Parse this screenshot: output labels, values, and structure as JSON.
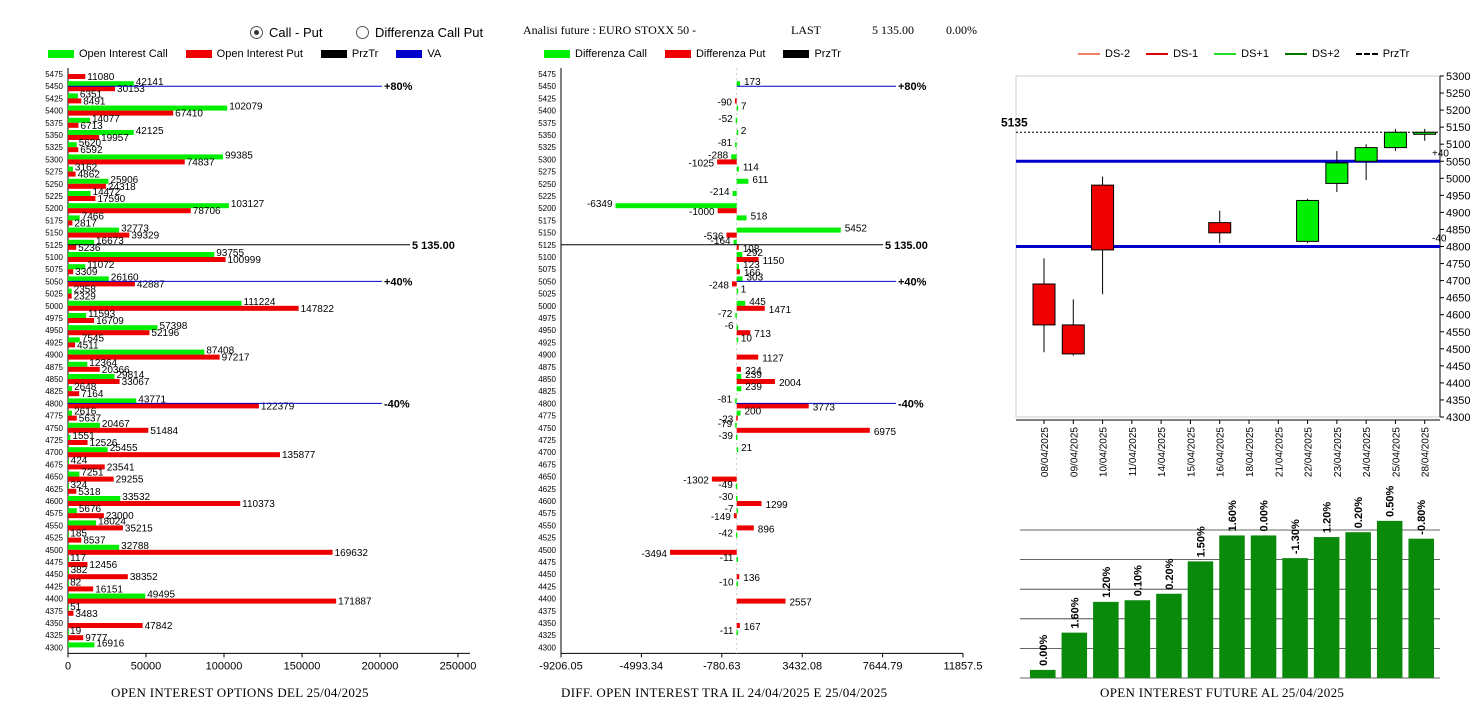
{
  "controls": {
    "radio_call_put": "Call - Put",
    "radio_diff": "Differenza Call Put",
    "selected": "call_put"
  },
  "header": {
    "title": "Analisi future : EURO STOXX 50 -",
    "last_label": "LAST",
    "last_value": "5 135.00",
    "change": "0.00%"
  },
  "colors": {
    "call": "#00ee00",
    "put": "#ee0000",
    "przTr": "#000000",
    "va": "#0000cc"
  },
  "chart_data": [
    {
      "id": "oi",
      "type": "bar",
      "orientation": "horizontal",
      "caption": "OPEN INTEREST OPTIONS DEL 25/04/2025",
      "legend": [
        "Open Interest Call",
        "Open Interest Put",
        "PrzTr",
        "VA"
      ],
      "xlim": [
        0,
        250000
      ],
      "xticks": [
        "0",
        "50000",
        "100000",
        "150000",
        "200000",
        "250000"
      ],
      "strikes": [
        5475,
        5450,
        5425,
        5400,
        5375,
        5350,
        5325,
        5300,
        5275,
        5250,
        5225,
        5200,
        5175,
        5150,
        5125,
        5100,
        5075,
        5050,
        5025,
        5000,
        4975,
        4950,
        4925,
        4900,
        4875,
        4850,
        4825,
        4800,
        4775,
        4750,
        4725,
        4700,
        4675,
        4650,
        4625,
        4600,
        4575,
        4550,
        4525,
        4500,
        4475,
        4450,
        4425,
        4400,
        4375,
        4350,
        4325,
        4300
      ],
      "call": [
        null,
        42141,
        6351,
        102079,
        14077,
        42125,
        5620,
        99385,
        3162,
        25906,
        14472,
        103127,
        7466,
        32773,
        16673,
        93755,
        11072,
        26160,
        2358,
        111224,
        11593,
        57398,
        7545,
        87408,
        12364,
        29814,
        2648,
        43771,
        2616,
        20467,
        1551,
        25455,
        424,
        7251,
        324,
        33532,
        5676,
        18024,
        185,
        32788,
        117,
        382,
        82,
        49495,
        51,
        null,
        19,
        16916
      ],
      "put": [
        11080,
        30153,
        8491,
        67410,
        6713,
        19957,
        6592,
        74837,
        4862,
        24318,
        17590,
        78706,
        2817,
        39329,
        5236,
        100999,
        3309,
        42887,
        2329,
        147822,
        16709,
        52196,
        4511,
        97217,
        20366,
        33067,
        7164,
        122379,
        5637,
        51484,
        12526,
        135877,
        23541,
        29255,
        5318,
        110373,
        23000,
        35215,
        8537,
        169632,
        12456,
        38352,
        16151,
        171887,
        3483,
        47842,
        9777,
        null
      ],
      "przTr": {
        "label": "5 135.00",
        "strike": 5125
      },
      "va_lines": [
        {
          "strike": 5450,
          "label": "+80%"
        },
        {
          "strike": 5050,
          "label": "+40%"
        },
        {
          "strike": 4800,
          "label": "-40%"
        }
      ]
    },
    {
      "id": "diff",
      "type": "bar",
      "orientation": "horizontal",
      "caption": "DIFF. OPEN INTEREST TRA IL 24/04/2025 E 25/04/2025",
      "legend": [
        "Differenza Call",
        "Differenza Put",
        "PrzTr"
      ],
      "xlim": [
        -9206.05,
        11857.5
      ],
      "xticks": [
        "-9206.05",
        "-4993.34",
        "-780.63",
        "3432.08",
        "7644.79",
        "11857.5"
      ],
      "call": {
        "5450": 173,
        "5400": 7,
        "5375": -52,
        "5350": 2,
        "5325": -81,
        "5300": -288,
        "5275": 114,
        "5250": 611,
        "5225": -214,
        "5200": -6349,
        "5175": 518,
        "5150": 5452,
        "5125": -164,
        "5100": 292,
        "5075": 123,
        "5050": 303,
        "5025": 1,
        "5000": 445,
        "4975": -72,
        "4950": -6,
        "4925": 10,
        "4850": 239,
        "4825": 239,
        "4800": -81,
        "4775": 200,
        "4750": -79,
        "4725": -39,
        "4700": 21,
        "4625": -49,
        "4600": -30,
        "4575": -7,
        "4525": -42,
        "4475": -11,
        "4425": -10,
        "4325": -11
      },
      "put": {
        "5425": -90,
        "5300": -1025,
        "5200": -1000,
        "5150": -536,
        "5125": 108,
        "5100": 1150,
        "5075": 166,
        "5050": -248,
        "5000": 1471,
        "4950": 713,
        "4900": 1127,
        "4875": 224,
        "4850": 2004,
        "4800": 3773,
        "4775": -23,
        "4750": 6975,
        "4650": -1302,
        "4600": 1299,
        "4575": -149,
        "4550": 896,
        "4500": -3494,
        "4450": 136,
        "4400": 2557,
        "4350": 167
      }
    },
    {
      "id": "future",
      "type": "candlestick",
      "caption": "OPEN INTEREST FUTURE AL 25/04/2025",
      "legend": [
        "DS-2",
        "DS-1",
        "DS+1",
        "DS+2",
        "PrzTr"
      ],
      "ylim": [
        4300,
        5300
      ],
      "last_label": "5135",
      "level_labels": [
        "+40",
        "-40"
      ],
      "levels": [
        5050,
        4800
      ],
      "dates": [
        "08/04/2025",
        "09/04/2025",
        "10/04/2025",
        "11/04/2025",
        "14/04/2025",
        "15/04/2025",
        "16/04/2025",
        "18/04/2025",
        "21/04/2025",
        "22/04/2025",
        "23/04/2025",
        "24/04/2025",
        "25/04/2025",
        "28/04/2025"
      ],
      "candles": [
        {
          "o": 4690,
          "c": 4570,
          "h": 4765,
          "l": 4490
        },
        {
          "o": 4570,
          "c": 4485,
          "h": 4645,
          "l": 4480
        },
        {
          "o": 4980,
          "c": 4790,
          "h": 5005,
          "l": 4660
        },
        null,
        null,
        null,
        {
          "o": 4870,
          "c": 4840,
          "h": 4905,
          "l": 4810
        },
        null,
        null,
        {
          "o": 4815,
          "c": 4935,
          "h": 4940,
          "l": 4810
        },
        {
          "o": 4985,
          "c": 5045,
          "h": 5080,
          "l": 4960
        },
        {
          "o": 5050,
          "c": 5090,
          "h": 5100,
          "l": 4995
        },
        {
          "o": 5090,
          "c": 5135,
          "h": 5145,
          "l": 5080
        },
        {
          "o": 5130,
          "c": 5135,
          "h": 5145,
          "l": 5110
        }
      ],
      "oi_change_pct": [
        0.0,
        1.6,
        1.2,
        0.1,
        0.2,
        1.5,
        1.6,
        0.0,
        -1.3,
        1.2,
        0.2,
        0.5,
        -0.8
      ],
      "oi_change_labels": [
        "0.00%",
        "1.60%",
        "1.20%",
        "0.10%",
        "0.20%",
        "1.50%",
        "1.60%",
        "0.00%",
        "-1.30%",
        "1.20%",
        "0.20%",
        "0.50%",
        "-0.80%"
      ],
      "oi_relative_level": [
        0.05,
        0.28,
        0.47,
        0.48,
        0.52,
        0.72,
        0.88,
        0.88,
        0.74,
        0.87,
        0.9,
        0.97,
        0.86
      ]
    }
  ]
}
